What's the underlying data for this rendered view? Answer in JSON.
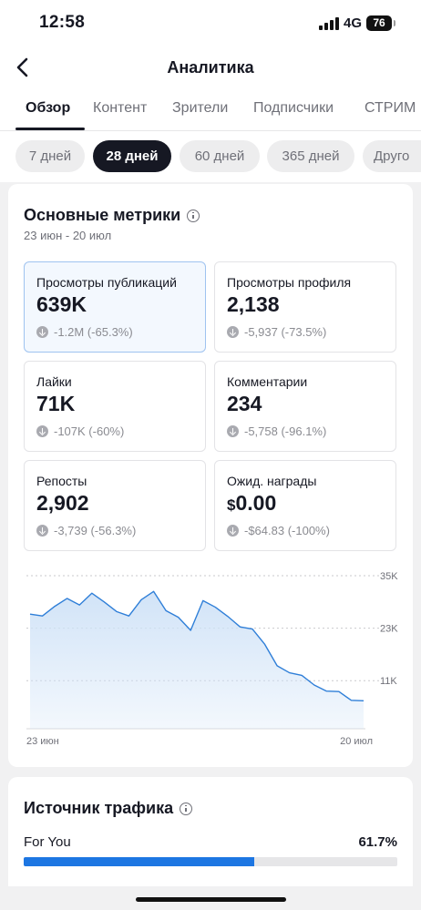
{
  "status_bar": {
    "time": "12:58",
    "network": "4G",
    "battery": "76"
  },
  "header": {
    "title": "Аналитика"
  },
  "tabs": [
    {
      "label": "Обзор",
      "active": true
    },
    {
      "label": "Контент",
      "active": false
    },
    {
      "label": "Зрители",
      "active": false
    },
    {
      "label": "Подписчики",
      "active": false
    },
    {
      "label": "СТРИМ",
      "active": false
    }
  ],
  "periods": [
    {
      "label": "7 дней",
      "active": false
    },
    {
      "label": "28 дней",
      "active": true
    },
    {
      "label": "60 дней",
      "active": false
    },
    {
      "label": "365 дней",
      "active": false
    },
    {
      "label": "Друго",
      "active": false
    }
  ],
  "metrics_card": {
    "title": "Основные метрики",
    "date_range": "23 июн - 20 июл",
    "metrics": [
      {
        "label": "Просмотры публикаций",
        "value": "639K",
        "delta": "-1.2M (-65.3%)",
        "selected": true
      },
      {
        "label": "Просмотры профиля",
        "value": "2,138",
        "delta": "-5,937 (-73.5%)",
        "selected": false
      },
      {
        "label": "Лайки",
        "value": "71K",
        "delta": "-107K (-60%)",
        "selected": false
      },
      {
        "label": "Комментарии",
        "value": "234",
        "delta": "-5,758 (-96.1%)",
        "selected": false
      },
      {
        "label": "Репосты",
        "value": "2,902",
        "delta": "-3,739 (-56.3%)",
        "selected": false
      },
      {
        "label": "Ожид. награды",
        "currency": "$",
        "value": "0.00",
        "delta": "-$64.83 (-100%)",
        "selected": false
      }
    ]
  },
  "chart_data": {
    "type": "area",
    "x": [
      "23 июн",
      "24 июн",
      "25 июн",
      "26 июн",
      "27 июн",
      "28 июн",
      "29 июн",
      "30 июн",
      "1 июл",
      "2 июл",
      "3 июл",
      "4 июл",
      "5 июл",
      "6 июл",
      "7 июл",
      "8 июл",
      "9 июл",
      "10 июл",
      "11 июл",
      "12 июл",
      "13 июл",
      "14 июл",
      "15 июл",
      "16 июл",
      "17 июл",
      "18 июл",
      "19 июл",
      "20 июл"
    ],
    "series": [
      {
        "values": [
          26200,
          25800,
          28000,
          29800,
          28300,
          31000,
          29000,
          26800,
          25800,
          29500,
          31400,
          27000,
          25500,
          22500,
          29300,
          27800,
          25700,
          23300,
          22800,
          19300,
          14400,
          12800,
          12200,
          10000,
          8600,
          8500,
          6500,
          6400
        ]
      }
    ],
    "x_tick_labels": [
      "23 июн",
      "20 июл"
    ],
    "y_tick_labels": [
      "35K",
      "23K",
      "11K"
    ],
    "y_ticks": [
      35000,
      23000,
      11000
    ],
    "ylim": [
      0,
      35000
    ],
    "grid": true,
    "color": "#2f7fd8",
    "fill_color": "#cfe2f7"
  },
  "traffic_card": {
    "title": "Источник трафика",
    "rows": [
      {
        "name": "For You",
        "value": "61.7%",
        "fraction": 0.617
      }
    ]
  }
}
